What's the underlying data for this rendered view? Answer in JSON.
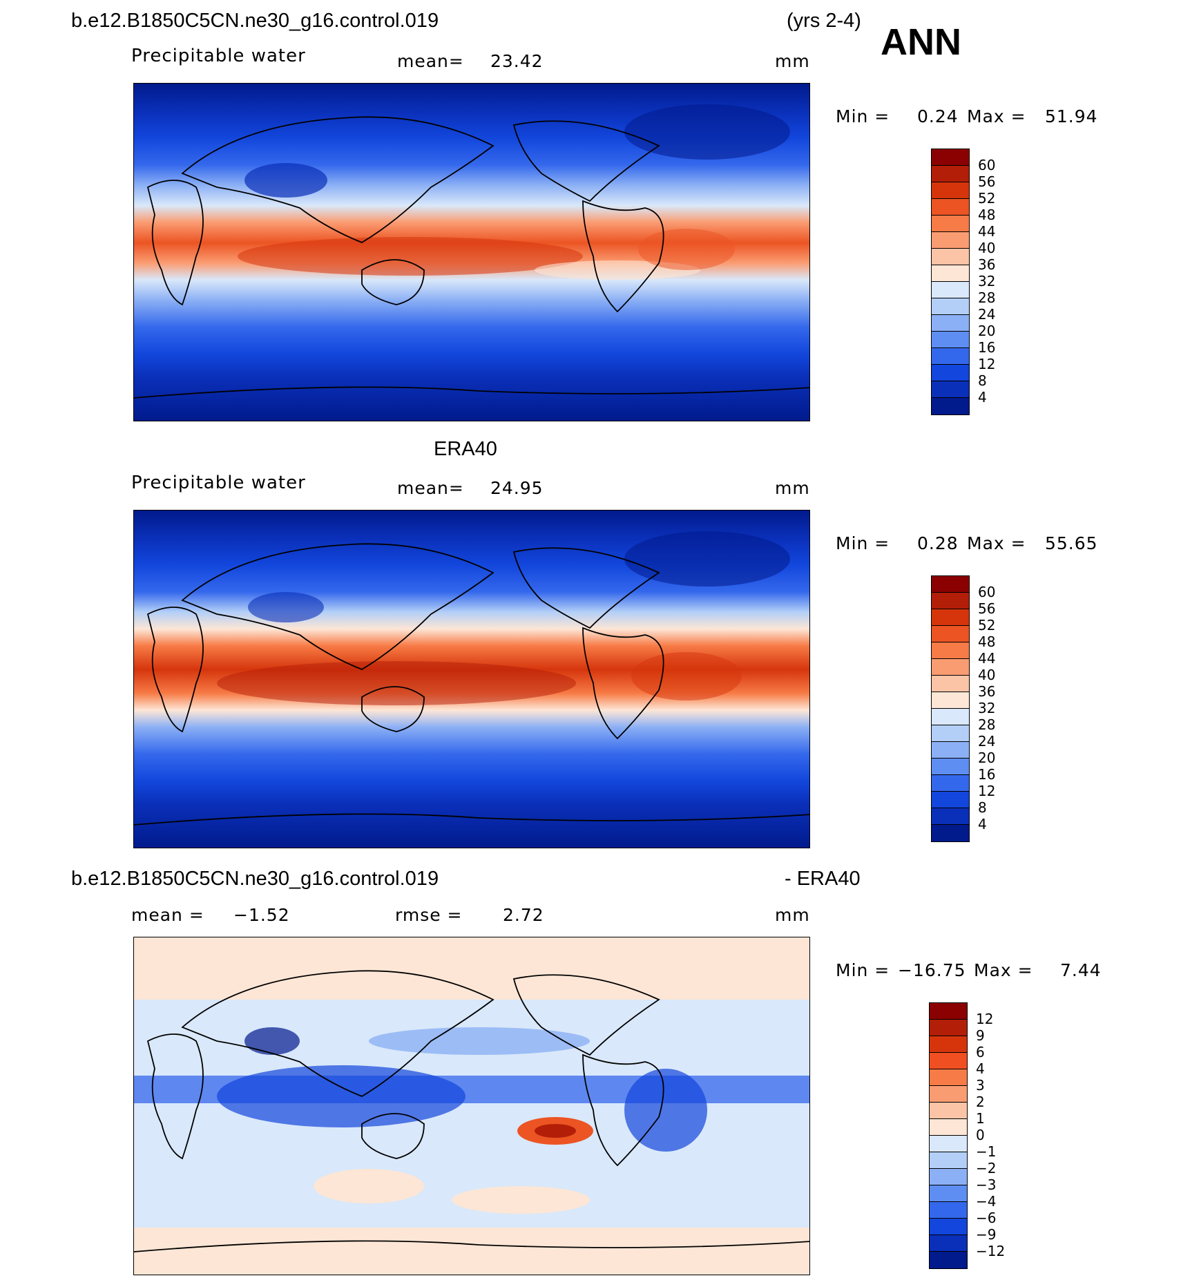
{
  "header": {
    "case_name": "b.e12.B1850C5CN.ne30_g16.control.019",
    "years": "(yrs 2-4)",
    "season": "ANN"
  },
  "panels": [
    {
      "title": "",
      "left_label": "Precipitable water",
      "mean_label": "mean=",
      "mean_value": "23.42",
      "units": "mm",
      "min_label": "Min =",
      "min_value": "0.24",
      "max_label": "Max =",
      "max_value": "51.94"
    },
    {
      "title": "ERA40",
      "left_label": "Precipitable water",
      "mean_label": "mean=",
      "mean_value": "24.95",
      "units": "mm",
      "min_label": "Min =",
      "min_value": "0.28",
      "max_label": "Max =",
      "max_value": "55.65"
    },
    {
      "title_left": "b.e12.B1850C5CN.ne30_g16.control.019",
      "title_right": "- ERA40",
      "mean_label": "mean =",
      "mean_value": "−1.52",
      "rmse_label": "rmse =",
      "rmse_value": "2.72",
      "units": "mm",
      "min_label": "Min =",
      "min_value": "−16.75",
      "max_label": "Max =",
      "max_value": "7.44"
    }
  ],
  "colorbars": {
    "field_levels": [
      "60",
      "56",
      "52",
      "48",
      "44",
      "40",
      "36",
      "32",
      "28",
      "24",
      "20",
      "16",
      "12",
      "8",
      "4"
    ],
    "field_colors": [
      "#8b0000",
      "#b31e08",
      "#d6350c",
      "#ec5423",
      "#f77b46",
      "#fa9c72",
      "#fcc4a6",
      "#fde6d6",
      "#d9e8fa",
      "#b3cff7",
      "#8cb0f5",
      "#5e8ef2",
      "#3468ec",
      "#1246dc",
      "#0a2fb8",
      "#011a8c"
    ],
    "diff_levels": [
      "12",
      "9",
      "6",
      "4",
      "3",
      "2",
      "1",
      "0",
      "−1",
      "−2",
      "−3",
      "−4",
      "−6",
      "−9",
      "−12"
    ],
    "diff_colors": [
      "#8b0000",
      "#b31e08",
      "#d6350c",
      "#f04f22",
      "#f77b46",
      "#fa9c72",
      "#fcc4a6",
      "#fde6d6",
      "#d9e8fa",
      "#b3cff7",
      "#8cb0f5",
      "#5e8ef2",
      "#3468ec",
      "#1246dc",
      "#0a2fb8",
      "#011a8c"
    ]
  }
}
